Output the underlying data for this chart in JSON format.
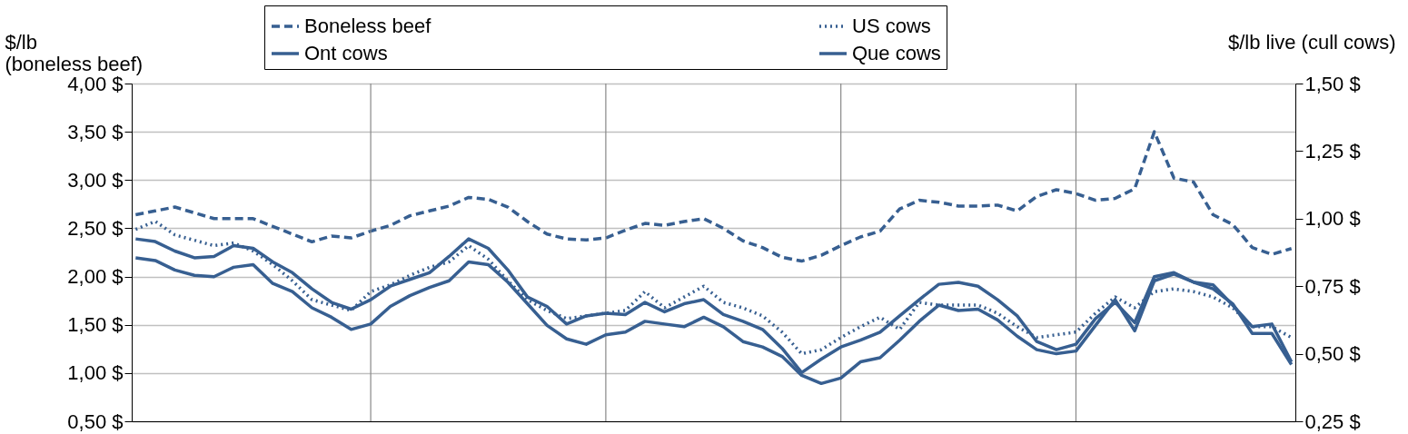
{
  "chart_data": {
    "type": "line",
    "ylabel": "$/lb\n(boneless beef)",
    "y2label": "$/lb live  (cull cows)",
    "categories": [
      null,
      null,
      null,
      null,
      null,
      null,
      null,
      null,
      null,
      null,
      null,
      null,
      null,
      null,
      null,
      null,
      null,
      null,
      null,
      null,
      null,
      null,
      null,
      null,
      null,
      null,
      null,
      null,
      null,
      null,
      null,
      null,
      null,
      null,
      null,
      null,
      null,
      null,
      null,
      null,
      null,
      null,
      null,
      null,
      null,
      null,
      null,
      null,
      null,
      null,
      null,
      null,
      null,
      null,
      null,
      null,
      null,
      null,
      null,
      null
    ],
    "ylim": [
      0.5,
      4.0
    ],
    "yticks": [
      {
        "value": 0.5,
        "label": "0,50 $"
      },
      {
        "value": 1.0,
        "label": "1,00 $"
      },
      {
        "value": 1.5,
        "label": "1,50 $"
      },
      {
        "value": 2.0,
        "label": "2,00 $"
      },
      {
        "value": 2.5,
        "label": "2,50 $"
      },
      {
        "value": 3.0,
        "label": "3,00 $"
      },
      {
        "value": 3.5,
        "label": "3,50 $"
      },
      {
        "value": 4.0,
        "label": "4,00 $"
      }
    ],
    "y2lim": [
      0.25,
      1.5
    ],
    "y2ticks": [
      {
        "value": 0.25,
        "label": "0,25 $"
      },
      {
        "value": 0.5,
        "label": "0,50 $"
      },
      {
        "value": 0.75,
        "label": "0,75 $"
      },
      {
        "value": 1.0,
        "label": "1,00 $"
      },
      {
        "value": 1.25,
        "label": "1,25 $"
      },
      {
        "value": 1.5,
        "label": "1,50 $"
      }
    ],
    "grid": true,
    "legend": "top",
    "tick_labels": "y",
    "series": [
      {
        "name": "Boneless beef",
        "color": "#375f91",
        "line_style": "dashed",
        "axis": "y",
        "values": [
          2.64,
          2.68,
          2.72,
          2.66,
          2.6,
          2.6,
          2.6,
          2.52,
          2.44,
          2.36,
          2.42,
          2.4,
          2.47,
          2.53,
          2.63,
          2.68,
          2.73,
          2.82,
          2.8,
          2.72,
          2.57,
          2.44,
          2.39,
          2.38,
          2.4,
          2.48,
          2.55,
          2.53,
          2.57,
          2.6,
          2.5,
          2.37,
          2.3,
          2.2,
          2.16,
          2.22,
          2.32,
          2.41,
          2.47,
          2.7,
          2.79,
          2.77,
          2.73,
          2.73,
          2.74,
          2.68,
          2.83,
          2.9,
          2.86,
          2.79,
          2.81,
          2.91,
          3.5,
          3.02,
          2.98,
          2.64,
          2.54,
          2.3,
          2.23,
          2.29
        ]
      },
      {
        "name": "US cows",
        "color": "#375f91",
        "line_style": "dotted",
        "axis": "y2",
        "values": [
          0.96,
          0.99,
          0.94,
          0.92,
          0.9,
          0.91,
          0.88,
          0.83,
          0.77,
          0.7,
          0.68,
          0.66,
          0.73,
          0.755,
          0.79,
          0.82,
          0.84,
          0.9,
          0.85,
          0.77,
          0.7,
          0.66,
          0.63,
          0.64,
          0.65,
          0.66,
          0.73,
          0.67,
          0.71,
          0.75,
          0.69,
          0.67,
          0.64,
          0.58,
          0.5,
          0.515,
          0.56,
          0.6,
          0.635,
          0.59,
          0.69,
          0.68,
          0.68,
          0.68,
          0.65,
          0.6,
          0.56,
          0.57,
          0.58,
          0.65,
          0.71,
          0.67,
          0.73,
          0.74,
          0.73,
          0.71,
          0.67,
          0.6,
          0.6,
          0.56
        ]
      },
      {
        "name": "Ont cows",
        "color": "#375f91",
        "line_style": "solid",
        "axis": "y2",
        "values": [
          0.925,
          0.915,
          0.88,
          0.855,
          0.86,
          0.9,
          0.89,
          0.84,
          0.8,
          0.74,
          0.69,
          0.665,
          0.7,
          0.75,
          0.775,
          0.8,
          0.86,
          0.925,
          0.89,
          0.81,
          0.71,
          0.675,
          0.61,
          0.64,
          0.65,
          0.645,
          0.69,
          0.655,
          0.685,
          0.7,
          0.645,
          0.62,
          0.59,
          0.52,
          0.43,
          0.48,
          0.525,
          0.55,
          0.58,
          0.64,
          0.7,
          0.757,
          0.764,
          0.75,
          0.7,
          0.64,
          0.545,
          0.515,
          0.535,
          0.63,
          0.69,
          0.615,
          0.785,
          0.8,
          0.765,
          0.755,
          0.68,
          0.6,
          0.61,
          0.47
        ]
      },
      {
        "name": "Que cows",
        "color": "#375f91",
        "line_style": "solid",
        "axis": "y2",
        "values": [
          0.855,
          0.845,
          0.81,
          0.79,
          0.785,
          0.82,
          0.83,
          0.76,
          0.73,
          0.67,
          0.635,
          0.59,
          0.61,
          0.675,
          0.715,
          0.745,
          0.77,
          0.84,
          0.83,
          0.765,
          0.685,
          0.605,
          0.555,
          0.535,
          0.57,
          0.58,
          0.62,
          0.61,
          0.6,
          0.635,
          0.6,
          0.545,
          0.525,
          0.49,
          0.42,
          0.39,
          0.41,
          0.47,
          0.485,
          0.55,
          0.62,
          0.68,
          0.66,
          0.665,
          0.625,
          0.565,
          0.515,
          0.5,
          0.51,
          0.605,
          0.7,
          0.585,
          0.77,
          0.795,
          0.765,
          0.74,
          0.685,
          0.575,
          0.575,
          0.46
        ]
      }
    ]
  }
}
